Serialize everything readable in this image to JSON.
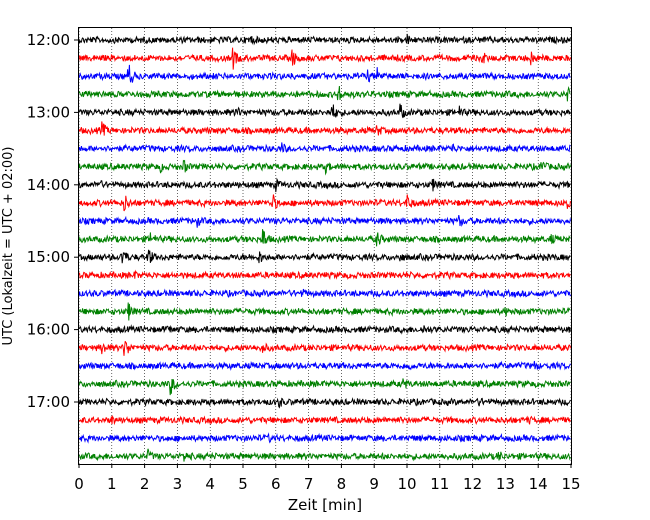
{
  "chart_data": {
    "type": "line",
    "subtype": "helicorder",
    "title": "",
    "xlabel": "Zeit  [min]",
    "ylabel": "UTC (Lokalzeit = UTC + 02:00)",
    "xlim": [
      0,
      15
    ],
    "x_ticks": [
      0,
      1,
      2,
      3,
      4,
      5,
      6,
      7,
      8,
      9,
      10,
      11,
      12,
      13,
      14,
      15
    ],
    "x_tick_labels": [
      "0",
      "1",
      "2",
      "3",
      "4",
      "5",
      "6",
      "7",
      "8",
      "9",
      "10",
      "11",
      "12",
      "13",
      "14",
      "15"
    ],
    "x_grid": "dotted vertical lines at every minute",
    "row_interval_minutes": 15,
    "y_ticks": [
      {
        "row": 0,
        "label": "12:00"
      },
      {
        "row": 4,
        "label": "13:00"
      },
      {
        "row": 8,
        "label": "14:00"
      },
      {
        "row": 12,
        "label": "15:00"
      },
      {
        "row": 16,
        "label": "16:00"
      },
      {
        "row": 20,
        "label": "17:00"
      }
    ],
    "color_cycle": [
      "#000000",
      "#ff0000",
      "#0000ff",
      "#008000"
    ],
    "traces": [
      {
        "start": "12:00",
        "events": [
          [
            5.2,
            6
          ],
          [
            10.0,
            5
          ]
        ]
      },
      {
        "start": "12:15",
        "events": [
          [
            4.7,
            10
          ],
          [
            6.5,
            9
          ],
          [
            12.3,
            6
          ],
          [
            13.8,
            7
          ]
        ]
      },
      {
        "start": "12:30",
        "events": [
          [
            1.5,
            15
          ],
          [
            8.8,
            6
          ],
          [
            9.1,
            8
          ]
        ]
      },
      {
        "start": "12:45",
        "events": [
          [
            7.9,
            9
          ],
          [
            14.9,
            6
          ]
        ]
      },
      {
        "start": "13:00",
        "events": [
          [
            4.8,
            5
          ],
          [
            7.7,
            11
          ],
          [
            9.8,
            8
          ],
          [
            11.6,
            5
          ]
        ]
      },
      {
        "start": "13:15",
        "events": [
          [
            0.7,
            8
          ],
          [
            9.1,
            5
          ]
        ]
      },
      {
        "start": "13:30",
        "events": [
          [
            6.2,
            5
          ],
          [
            11.4,
            4
          ]
        ]
      },
      {
        "start": "13:45",
        "events": [
          [
            2.5,
            5
          ],
          [
            3.2,
            6
          ],
          [
            7.5,
            6
          ],
          [
            14.1,
            7
          ]
        ]
      },
      {
        "start": "14:00",
        "events": [
          [
            0.6,
            5
          ],
          [
            6.0,
            6
          ],
          [
            10.8,
            5
          ]
        ]
      },
      {
        "start": "14:15",
        "events": [
          [
            1.4,
            8
          ],
          [
            5.9,
            9
          ],
          [
            10.0,
            10
          ],
          [
            14.9,
            8
          ]
        ]
      },
      {
        "start": "14:30",
        "events": [
          [
            3.6,
            5
          ],
          [
            11.6,
            5
          ]
        ]
      },
      {
        "start": "14:45",
        "events": [
          [
            2.2,
            6
          ],
          [
            5.6,
            12
          ],
          [
            9.1,
            7
          ],
          [
            14.4,
            5
          ]
        ]
      },
      {
        "start": "15:00",
        "events": [
          [
            1.3,
            12
          ],
          [
            2.1,
            10
          ],
          [
            5.5,
            6
          ],
          [
            9.8,
            5
          ]
        ]
      },
      {
        "start": "15:15",
        "events": [
          [
            1.7,
            3
          ]
        ]
      },
      {
        "start": "15:30",
        "events": [
          [
            6.8,
            4
          ]
        ]
      },
      {
        "start": "15:45",
        "events": [
          [
            1.5,
            9
          ],
          [
            13.0,
            4
          ]
        ]
      },
      {
        "start": "16:00",
        "events": [
          [
            2.7,
            4
          ],
          [
            10.5,
            4
          ]
        ]
      },
      {
        "start": "16:15",
        "events": [
          [
            0.7,
            8
          ],
          [
            1.4,
            10
          ],
          [
            5.6,
            5
          ]
        ]
      },
      {
        "start": "16:30",
        "events": [
          [
            10.0,
            5
          ],
          [
            13.9,
            4
          ]
        ]
      },
      {
        "start": "16:45",
        "events": [
          [
            2.8,
            10
          ],
          [
            9.9,
            5
          ]
        ]
      },
      {
        "start": "17:00",
        "events": [
          [
            6.1,
            5
          ],
          [
            12.2,
            4
          ]
        ]
      },
      {
        "start": "17:15",
        "events": [
          [
            1.0,
            4
          ],
          [
            13.7,
            4
          ]
        ]
      },
      {
        "start": "17:30",
        "events": [
          [
            5.8,
            3
          ]
        ]
      },
      {
        "start": "17:45",
        "events": [
          [
            2.1,
            6
          ],
          [
            3.2,
            5
          ],
          [
            12.8,
            5
          ]
        ]
      }
    ]
  }
}
